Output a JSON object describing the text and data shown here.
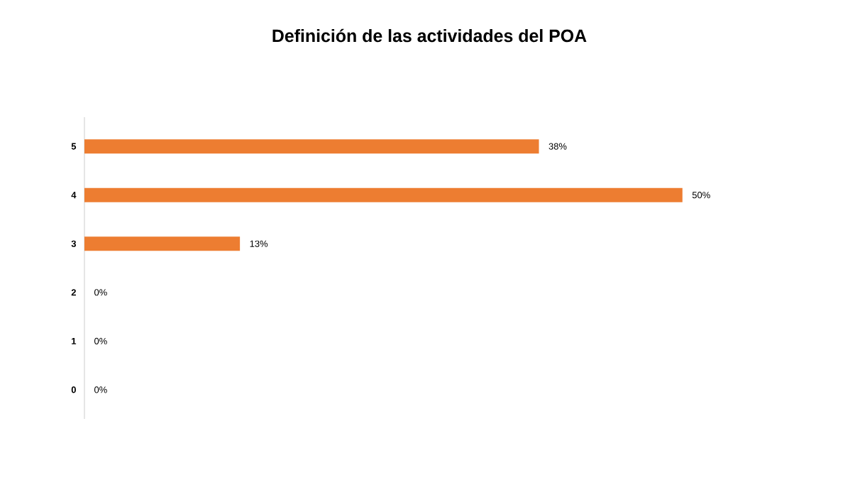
{
  "chart_data": {
    "type": "bar",
    "orientation": "horizontal",
    "title": "Definición de las actividades del POA",
    "categories": [
      "5",
      "4",
      "3",
      "2",
      "1",
      "0"
    ],
    "values": [
      38,
      50,
      13,
      0,
      0,
      0
    ],
    "value_labels": [
      "38%",
      "50%",
      "13%",
      "0%",
      "0%",
      "0%"
    ],
    "color": "#ed7d31"
  }
}
